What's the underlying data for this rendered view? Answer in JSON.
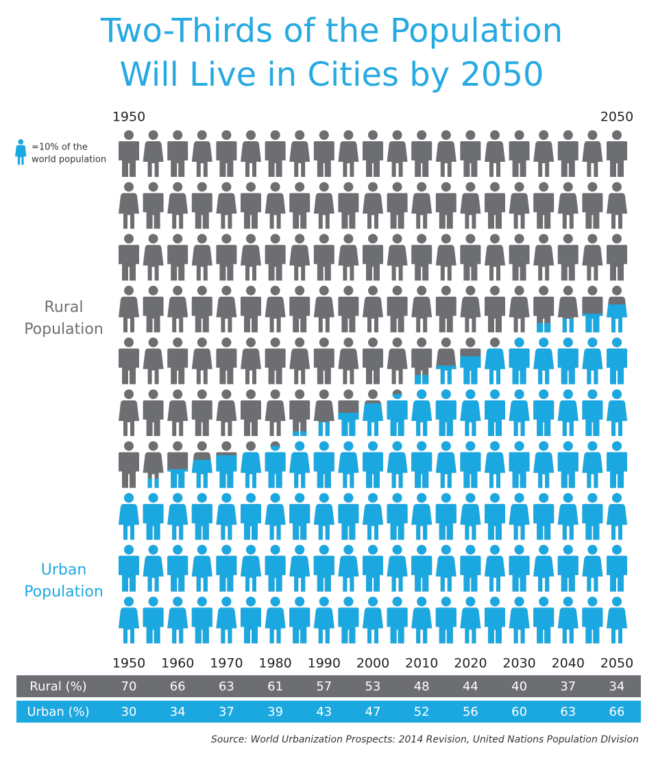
{
  "chart_data": {
    "type": "pictograph",
    "title": [
      "Two-Thirds of the Population",
      "Will Live in Cities by 2050"
    ],
    "legend": [
      "=10% of the",
      "world population"
    ],
    "rural_label": [
      "Rural",
      "Population"
    ],
    "urban_label": [
      "Urban",
      "Population"
    ],
    "categories": [
      "1950",
      null,
      "1960",
      null,
      "1970",
      null,
      "1980",
      null,
      "1990",
      null,
      "2000",
      null,
      "2010",
      null,
      "2020",
      null,
      "2030",
      null,
      "2040",
      null,
      "2050"
    ],
    "values": [
      30,
      32,
      34,
      36,
      37,
      38,
      39,
      41,
      43,
      45,
      47,
      49,
      52,
      54,
      56,
      58,
      60,
      62,
      63,
      64,
      66
    ],
    "ylim": [
      0,
      100
    ],
    "rural_color": "#6d6e71",
    "urban_color": "#1ba8e0"
  },
  "table": {
    "rows": [
      {
        "label": "Rural (%)",
        "color": "#6d6e71",
        "values": [
          70,
          66,
          63,
          61,
          57,
          53,
          48,
          44,
          40,
          37,
          34
        ]
      },
      {
        "label": "Urban (%)",
        "color": "#1ba8e0",
        "values": [
          30,
          34,
          37,
          39,
          43,
          47,
          52,
          56,
          60,
          63,
          66
        ]
      }
    ]
  },
  "source": "Source: World Urbanization Prospects: 2014 Revision, United Nations Population DIvision"
}
